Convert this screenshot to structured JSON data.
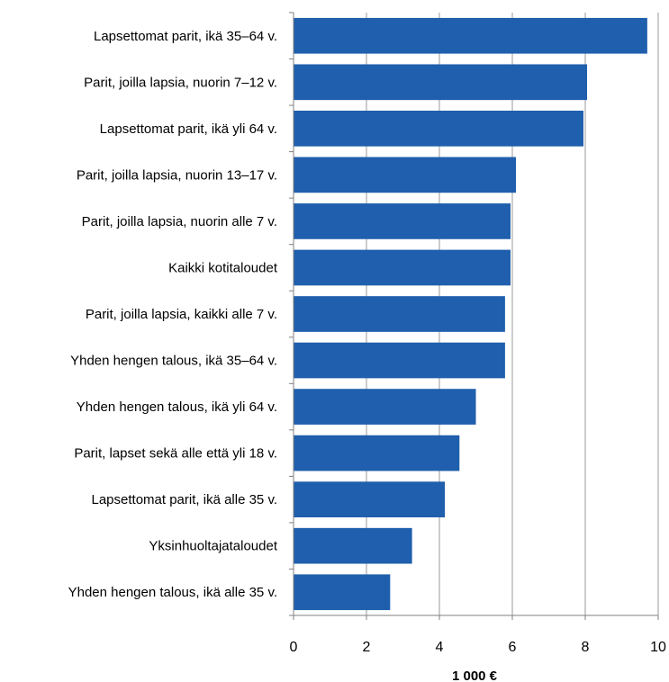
{
  "chart_data": {
    "type": "bar",
    "orientation": "horizontal",
    "categories": [
      "Lapsettomat parit, ikä 35–64 v.",
      "Parit, joilla lapsia, nuorin 7–12 v.",
      "Lapsettomat parit, ikä yli 64 v.",
      "Parit, joilla lapsia, nuorin 13–17 v.",
      "Parit, joilla lapsia, nuorin alle 7 v.",
      "Kaikki kotitaloudet",
      "Parit, joilla lapsia, kaikki alle 7 v.",
      "Yhden hengen talous, ikä 35–64 v.",
      "Yhden hengen talous, ikä yli 64 v.",
      "Parit, lapset sekä alle että yli 18 v.",
      "Lapsettomat parit, ikä alle 35 v.",
      "Yksinhuoltajataloudet",
      "Yhden hengen talous, ikä alle 35 v."
    ],
    "values": [
      9.7,
      8.05,
      7.95,
      6.1,
      5.95,
      5.95,
      5.8,
      5.8,
      5.0,
      4.55,
      4.15,
      3.25,
      2.65
    ],
    "xlabel": "1 000 €",
    "xlim": [
      0,
      10
    ],
    "xticks": [
      "0",
      "2",
      "4",
      "6",
      "8",
      "10"
    ],
    "grid": true,
    "colors": {
      "bar": "#1f5fad",
      "grid": "#999999",
      "axis": "#808080"
    }
  }
}
